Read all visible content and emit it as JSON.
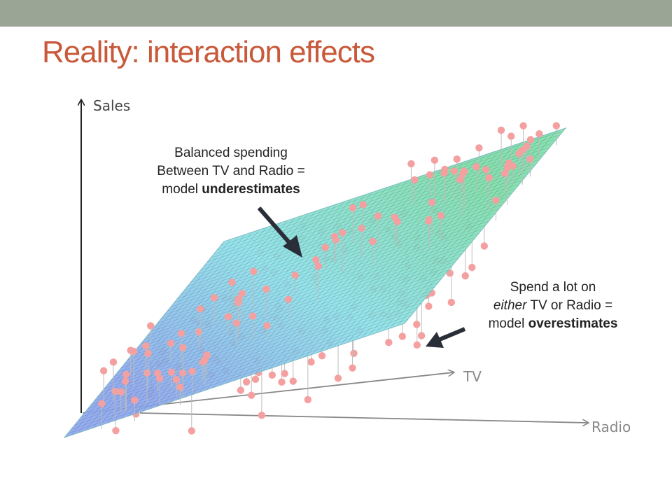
{
  "header": {
    "band_color": "#9ba596"
  },
  "slide": {
    "title": "Reality: interaction effects",
    "title_color": "#c8593a"
  },
  "axes": {
    "z_label": "Sales",
    "x_label": "TV",
    "y_label": "Radio"
  },
  "annotations": {
    "balanced": {
      "line1": "Balanced spending",
      "line2": "Between TV and Radio =",
      "line3_prefix": "model ",
      "line3_bold": "underestimates"
    },
    "extreme": {
      "line1": "Spend a lot on",
      "line2_italic": "either",
      "line2_rest": " TV or Radio =",
      "line3_prefix": "model ",
      "line3_bold": "overestimates"
    }
  },
  "colors": {
    "plane_top": "#7fe0a6",
    "plane_bottom": "#8ea7ee",
    "points": "#f4a0a0",
    "stems": "#bdbdbd",
    "arrows": "#2a2e38"
  }
}
